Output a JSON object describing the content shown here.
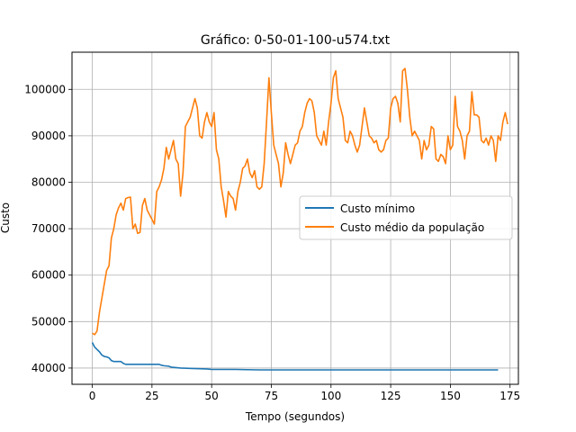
{
  "chart_data": {
    "type": "line",
    "title": "Gráfico: 0-50-01-100-u574.txt",
    "xlabel": "Tempo (segundos)",
    "ylabel": "Custo",
    "xlim": [
      -8.5,
      178.5
    ],
    "ylim": [
      36500,
      108000
    ],
    "xticks": [
      0,
      25,
      50,
      75,
      100,
      125,
      150,
      175
    ],
    "xtick_labels": [
      "0",
      "25",
      "50",
      "75",
      "100",
      "125",
      "150",
      "175"
    ],
    "yticks": [
      40000,
      50000,
      60000,
      70000,
      80000,
      90000,
      100000
    ],
    "ytick_labels": [
      "40000",
      "50000",
      "60000",
      "70000",
      "80000",
      "90000",
      "100000"
    ],
    "grid": true,
    "legend_position": "center-right",
    "series": [
      {
        "name": "Custo mínimo",
        "color": "#1f77b4",
        "points": [
          [
            0,
            45500
          ],
          [
            1,
            44500
          ],
          [
            2,
            44000
          ],
          [
            3,
            43500
          ],
          [
            4,
            42800
          ],
          [
            5,
            42500
          ],
          [
            6,
            42400
          ],
          [
            7,
            42200
          ],
          [
            8,
            41600
          ],
          [
            9,
            41400
          ],
          [
            10,
            41400
          ],
          [
            12,
            41400
          ],
          [
            13,
            41000
          ],
          [
            14,
            40800
          ],
          [
            16,
            40800
          ],
          [
            20,
            40800
          ],
          [
            25,
            40800
          ],
          [
            28,
            40800
          ],
          [
            29,
            40600
          ],
          [
            30,
            40500
          ],
          [
            32,
            40400
          ],
          [
            33,
            40200
          ],
          [
            35,
            40100
          ],
          [
            37,
            40000
          ],
          [
            42,
            39900
          ],
          [
            48,
            39800
          ],
          [
            50,
            39700
          ],
          [
            60,
            39700
          ],
          [
            65,
            39650
          ],
          [
            70,
            39600
          ],
          [
            80,
            39600
          ],
          [
            100,
            39600
          ],
          [
            120,
            39600
          ],
          [
            140,
            39600
          ],
          [
            160,
            39600
          ],
          [
            170,
            39600
          ]
        ]
      },
      {
        "name": "Custo médio da população",
        "color": "#ff7f0e",
        "points": [
          [
            0,
            47500
          ],
          [
            1,
            47200
          ],
          [
            2,
            48000
          ],
          [
            3,
            52000
          ],
          [
            4,
            55000
          ],
          [
            5,
            58000
          ],
          [
            6,
            61000
          ],
          [
            7,
            62000
          ],
          [
            8,
            68000
          ],
          [
            9,
            70000
          ],
          [
            10,
            73000
          ],
          [
            11,
            74500
          ],
          [
            12,
            75500
          ],
          [
            13,
            74000
          ],
          [
            14,
            76500
          ],
          [
            15,
            76700
          ],
          [
            16,
            76800
          ],
          [
            17,
            70000
          ],
          [
            18,
            71000
          ],
          [
            19,
            69000
          ],
          [
            20,
            69200
          ],
          [
            21,
            75000
          ],
          [
            22,
            76500
          ],
          [
            23,
            74000
          ],
          [
            24,
            73000
          ],
          [
            25,
            72000
          ],
          [
            26,
            71000
          ],
          [
            27,
            78000
          ],
          [
            28,
            79000
          ],
          [
            29,
            80500
          ],
          [
            30,
            83000
          ],
          [
            31,
            87500
          ],
          [
            32,
            85000
          ],
          [
            33,
            87000
          ],
          [
            34,
            89000
          ],
          [
            35,
            85000
          ],
          [
            36,
            84000
          ],
          [
            37,
            77000
          ],
          [
            38,
            82000
          ],
          [
            39,
            92000
          ],
          [
            40,
            93000
          ],
          [
            41,
            94000
          ],
          [
            42,
            96000
          ],
          [
            43,
            98000
          ],
          [
            44,
            96000
          ],
          [
            45,
            90000
          ],
          [
            46,
            89500
          ],
          [
            47,
            93000
          ],
          [
            48,
            95000
          ],
          [
            49,
            93000
          ],
          [
            50,
            92000
          ],
          [
            51,
            95000
          ],
          [
            52,
            87000
          ],
          [
            53,
            85000
          ],
          [
            54,
            79000
          ],
          [
            55,
            76000
          ],
          [
            56,
            72500
          ],
          [
            57,
            78000
          ],
          [
            58,
            77000
          ],
          [
            59,
            76500
          ],
          [
            60,
            74000
          ],
          [
            61,
            78000
          ],
          [
            62,
            80000
          ],
          [
            63,
            83000
          ],
          [
            64,
            83500
          ],
          [
            65,
            85000
          ],
          [
            66,
            82000
          ],
          [
            67,
            81000
          ],
          [
            68,
            82500
          ],
          [
            69,
            79000
          ],
          [
            70,
            78500
          ],
          [
            71,
            79000
          ],
          [
            72,
            84000
          ],
          [
            73,
            93000
          ],
          [
            74,
            102500
          ],
          [
            75,
            95000
          ],
          [
            76,
            88000
          ],
          [
            77,
            86000
          ],
          [
            78,
            84000
          ],
          [
            79,
            79000
          ],
          [
            80,
            82000
          ],
          [
            81,
            88500
          ],
          [
            82,
            86000
          ],
          [
            83,
            84000
          ],
          [
            84,
            86000
          ],
          [
            85,
            88000
          ],
          [
            86,
            88500
          ],
          [
            87,
            91000
          ],
          [
            88,
            92000
          ],
          [
            89,
            95000
          ],
          [
            90,
            97000
          ],
          [
            91,
            98000
          ],
          [
            92,
            97500
          ],
          [
            93,
            95000
          ],
          [
            94,
            90000
          ],
          [
            95,
            89000
          ],
          [
            96,
            88000
          ],
          [
            97,
            91000
          ],
          [
            98,
            88000
          ],
          [
            99,
            93000
          ],
          [
            100,
            97000
          ],
          [
            101,
            102500
          ],
          [
            102,
            104000
          ],
          [
            103,
            98000
          ],
          [
            104,
            96000
          ],
          [
            105,
            94000
          ],
          [
            106,
            89000
          ],
          [
            107,
            88500
          ],
          [
            108,
            91000
          ],
          [
            109,
            90000
          ],
          [
            110,
            88000
          ],
          [
            111,
            86500
          ],
          [
            112,
            88000
          ],
          [
            113,
            92000
          ],
          [
            114,
            96000
          ],
          [
            115,
            93000
          ],
          [
            116,
            90000
          ],
          [
            117,
            89500
          ],
          [
            118,
            88500
          ],
          [
            119,
            89000
          ],
          [
            120,
            87000
          ],
          [
            121,
            86500
          ],
          [
            122,
            87000
          ],
          [
            123,
            89000
          ],
          [
            124,
            89500
          ],
          [
            125,
            96000
          ],
          [
            126,
            98000
          ],
          [
            127,
            98500
          ],
          [
            128,
            97000
          ],
          [
            129,
            93000
          ],
          [
            130,
            104000
          ],
          [
            131,
            104500
          ],
          [
            132,
            100000
          ],
          [
            133,
            94000
          ],
          [
            134,
            90000
          ],
          [
            135,
            91000
          ],
          [
            136,
            90000
          ],
          [
            137,
            89000
          ],
          [
            138,
            85000
          ],
          [
            139,
            89000
          ],
          [
            140,
            87000
          ],
          [
            141,
            88000
          ],
          [
            142,
            92000
          ],
          [
            143,
            91500
          ],
          [
            144,
            85000
          ],
          [
            145,
            84500
          ],
          [
            146,
            86000
          ],
          [
            147,
            85500
          ],
          [
            148,
            84000
          ],
          [
            149,
            90000
          ],
          [
            150,
            87000
          ],
          [
            151,
            88000
          ],
          [
            152,
            98500
          ],
          [
            153,
            92000
          ],
          [
            154,
            91000
          ],
          [
            155,
            89000
          ],
          [
            156,
            85000
          ],
          [
            157,
            90000
          ],
          [
            158,
            91000
          ],
          [
            159,
            99500
          ],
          [
            160,
            94500
          ],
          [
            161,
            94500
          ],
          [
            162,
            94000
          ],
          [
            163,
            89000
          ],
          [
            164,
            88500
          ],
          [
            165,
            89500
          ],
          [
            166,
            88000
          ],
          [
            167,
            90000
          ],
          [
            168,
            89000
          ],
          [
            169,
            84500
          ],
          [
            170,
            90000
          ],
          [
            171,
            89000
          ],
          [
            172,
            93000
          ],
          [
            173,
            95000
          ],
          [
            174,
            92500
          ]
        ]
      }
    ]
  }
}
